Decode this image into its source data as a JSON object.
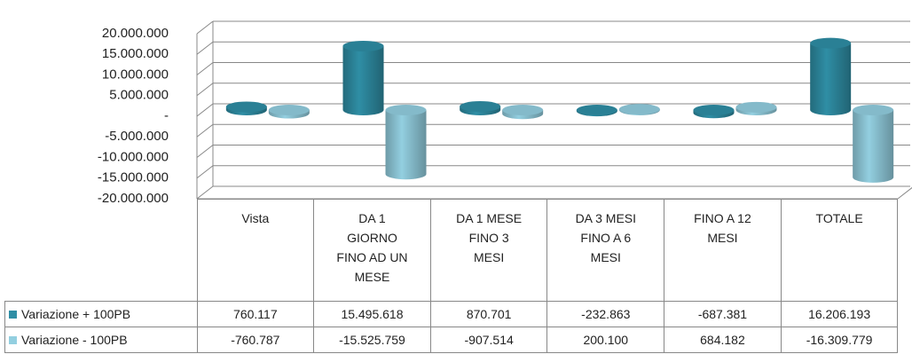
{
  "chart_data": {
    "type": "bar3d",
    "categories": [
      "Vista",
      "DA 1 GIORNO FINO AD UN MESE",
      "DA 1 MESE FINO 3 MESI",
      "DA 3 MESI FINO A 6 MESI",
      "FINO A 12 MESI",
      "TOTALE"
    ],
    "series": [
      {
        "name": "Variazione + 100PB",
        "color": "#2f8ea5",
        "values": [
          760117,
          15495618,
          870701,
          -232863,
          -687381,
          16206193
        ],
        "value_labels": [
          "760.117",
          "15.495.618",
          "870.701",
          "-232.863",
          "-687.381",
          "16.206.193"
        ]
      },
      {
        "name": "Variazione - 100PB",
        "color": "#93cfe0",
        "values": [
          -760787,
          -15525759,
          -907514,
          200100,
          684182,
          -16309779
        ],
        "value_labels": [
          "-760.787",
          "-15.525.759",
          "-907.514",
          "200.100",
          "684.182",
          "-16.309.779"
        ]
      }
    ],
    "ylim": [
      -20000000,
      20000000
    ],
    "yticks": [
      {
        "value": 20000000,
        "label": "20.000.000"
      },
      {
        "value": 15000000,
        "label": "15.000.000"
      },
      {
        "value": 10000000,
        "label": "10.000.000"
      },
      {
        "value": 5000000,
        "label": "5.000.000"
      },
      {
        "value": 0,
        "label": "-"
      },
      {
        "value": -5000000,
        "label": "-5.000.000"
      },
      {
        "value": -10000000,
        "label": "-10.000.000"
      },
      {
        "value": -15000000,
        "label": "-15.000.000"
      },
      {
        "value": -20000000,
        "label": "-20.000.000"
      }
    ],
    "grid": true
  }
}
